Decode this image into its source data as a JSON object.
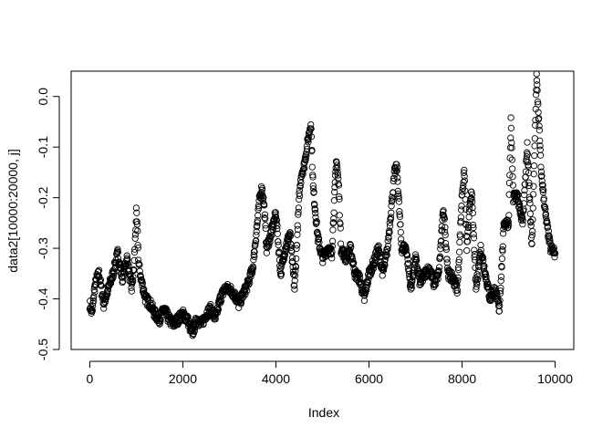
{
  "chart_data": {
    "type": "scatter",
    "title": "",
    "xlabel": "Index",
    "ylabel": "data2[10000:20000, j]",
    "xlim": [
      -400,
      10400
    ],
    "ylim": [
      -0.5,
      0.05
    ],
    "x_ticks": [
      0,
      2000,
      4000,
      6000,
      8000,
      10000
    ],
    "x_tick_labels": [
      "0",
      "2000",
      "4000",
      "6000",
      "8000",
      "10000"
    ],
    "y_ticks": [
      -0.5,
      -0.4,
      -0.3,
      -0.2,
      -0.1,
      0.0
    ],
    "y_tick_labels": [
      "-0.5",
      "-0.4",
      "-0.3",
      "-0.2",
      "-0.1",
      "0.0"
    ],
    "grid": false,
    "marker": "open-circle",
    "series": [
      {
        "x": [
          0,
          50,
          100,
          150,
          200,
          300,
          400,
          500,
          550,
          600,
          700,
          800,
          900,
          950,
          1000,
          1020,
          1050,
          1100,
          1200,
          1300,
          1400,
          1500,
          1600,
          1700,
          1800,
          1900,
          2000,
          2100,
          2200,
          2300,
          2400,
          2500,
          2600,
          2700,
          2800,
          2900,
          3000,
          3100,
          3200,
          3300,
          3400,
          3500,
          3600,
          3650,
          3700,
          3750,
          3800,
          3900,
          4000,
          4100,
          4200,
          4300,
          4400,
          4500,
          4550,
          4600,
          4700,
          4750,
          4800,
          4900,
          5000,
          5100,
          5200,
          5300,
          5350,
          5400,
          5500,
          5600,
          5700,
          5800,
          5900,
          6000,
          6100,
          6200,
          6300,
          6400,
          6500,
          6550,
          6600,
          6700,
          6800,
          6900,
          7000,
          7100,
          7200,
          7300,
          7400,
          7500,
          7600,
          7700,
          7800,
          7900,
          8000,
          8050,
          8100,
          8200,
          8300,
          8400,
          8500,
          8600,
          8700,
          8800,
          8900,
          9000,
          9050,
          9100,
          9200,
          9300,
          9400,
          9500,
          9600,
          9650,
          9700,
          9800,
          9900,
          10000
        ],
        "y": [
          -0.41,
          -0.43,
          -0.38,
          -0.36,
          -0.35,
          -0.41,
          -0.38,
          -0.35,
          -0.33,
          -0.31,
          -0.36,
          -0.32,
          -0.38,
          -0.34,
          -0.23,
          -0.26,
          -0.33,
          -0.36,
          -0.4,
          -0.41,
          -0.43,
          -0.44,
          -0.42,
          -0.44,
          -0.45,
          -0.44,
          -0.43,
          -0.44,
          -0.47,
          -0.44,
          -0.45,
          -0.43,
          -0.42,
          -0.44,
          -0.4,
          -0.38,
          -0.38,
          -0.39,
          -0.41,
          -0.39,
          -0.37,
          -0.34,
          -0.25,
          -0.2,
          -0.18,
          -0.22,
          -0.3,
          -0.27,
          -0.23,
          -0.35,
          -0.3,
          -0.27,
          -0.38,
          -0.2,
          -0.15,
          -0.14,
          -0.08,
          -0.05,
          -0.18,
          -0.28,
          -0.32,
          -0.3,
          -0.31,
          -0.12,
          -0.18,
          -0.3,
          -0.32,
          -0.3,
          -0.35,
          -0.36,
          -0.4,
          -0.35,
          -0.33,
          -0.3,
          -0.35,
          -0.3,
          -0.2,
          -0.15,
          -0.14,
          -0.3,
          -0.3,
          -0.38,
          -0.32,
          -0.37,
          -0.35,
          -0.34,
          -0.37,
          -0.35,
          -0.22,
          -0.35,
          -0.36,
          -0.38,
          -0.19,
          -0.15,
          -0.3,
          -0.18,
          -0.38,
          -0.3,
          -0.35,
          -0.4,
          -0.38,
          -0.42,
          -0.25,
          -0.25,
          -0.05,
          -0.2,
          -0.2,
          -0.25,
          -0.1,
          -0.3,
          0.04,
          -0.05,
          -0.15,
          -0.24,
          -0.3,
          -0.31
        ]
      }
    ]
  }
}
